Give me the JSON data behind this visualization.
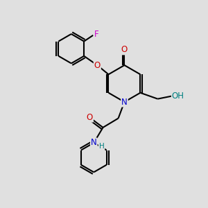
{
  "bg_color": "#e0e0e0",
  "bond_color": "#000000",
  "bond_width": 1.5,
  "atom_colors": {
    "C": "#000000",
    "N": "#0000cc",
    "O": "#cc0000",
    "F": "#cc00cc",
    "H": "#008080"
  },
  "font_size": 8.5,
  "figsize": [
    3.0,
    3.0
  ],
  "dpi": 100,
  "xlim": [
    0,
    10
  ],
  "ylim": [
    0,
    10
  ]
}
